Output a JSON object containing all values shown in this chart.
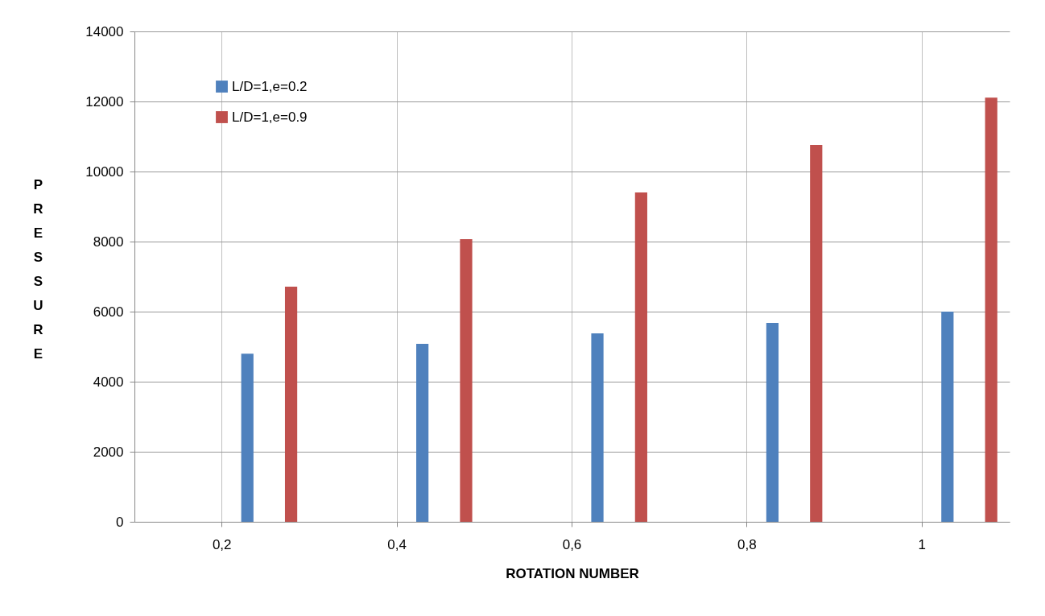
{
  "chart_data": {
    "type": "bar",
    "xlabel": "ROTATION NUMBER",
    "ylabel": "PRESSURE",
    "categories": [
      "0,2",
      "0,4",
      "0,6",
      "0,8",
      "1"
    ],
    "series": [
      {
        "name": "L/D=1,e=0.2",
        "color": "#4f81bd",
        "values": [
          4800,
          5080,
          5380,
          5680,
          6000
        ]
      },
      {
        "name": "L/D=1,e=0.9",
        "color": "#c0504d",
        "values": [
          6710,
          8070,
          9400,
          10760,
          12110
        ]
      }
    ],
    "ylim": [
      0,
      14000
    ],
    "yticks": [
      0,
      2000,
      4000,
      6000,
      8000,
      10000,
      12000,
      14000
    ],
    "grid": true,
    "legend": "top left"
  }
}
